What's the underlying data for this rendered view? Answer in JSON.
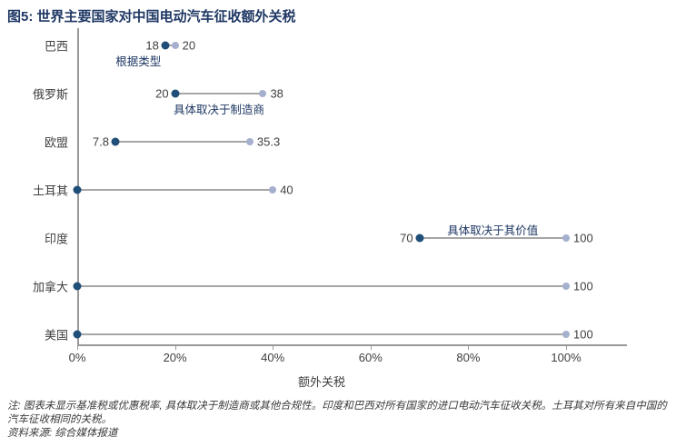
{
  "title": "图5: 世界主要国家对中国电动汽车征收额外关税",
  "chart_data": {
    "type": "dumbbell",
    "title": "图5: 世界主要国家对中国电动汽车征收额外关税",
    "xlabel": "额外关税",
    "xlim": [
      0,
      100
    ],
    "unit": "%",
    "x_ticks": [
      "0%",
      "20%",
      "40%",
      "60%",
      "80%",
      "100%"
    ],
    "grid": false,
    "legend": "none",
    "categories": [
      "巴西",
      "俄罗斯",
      "欧盟",
      "土耳其",
      "印度",
      "加拿大",
      "美国"
    ],
    "series": [
      {
        "name": "low",
        "values": [
          18,
          20,
          7.8,
          0,
          70,
          0,
          0
        ]
      },
      {
        "name": "high",
        "values": [
          20,
          38,
          35.3,
          40,
          100,
          100,
          100
        ]
      }
    ],
    "rows": [
      {
        "label": "巴西",
        "low": 18,
        "high": 20,
        "low_label": "18",
        "high_label": "20",
        "annotation": "根据类型",
        "annotation_position": "below-left"
      },
      {
        "label": "俄罗斯",
        "low": 20,
        "high": 38,
        "low_label": "20",
        "high_label": "38",
        "annotation": "具体取决于制造商",
        "annotation_position": "below"
      },
      {
        "label": "欧盟",
        "low": 7.8,
        "high": 35.3,
        "low_label": "7.8",
        "high_label": "35.3",
        "annotation": "",
        "annotation_position": ""
      },
      {
        "label": "土耳其",
        "low": 0,
        "high": 40,
        "low_label": "",
        "high_label": "40",
        "annotation": "",
        "annotation_position": ""
      },
      {
        "label": "印度",
        "low": 70,
        "high": 100,
        "low_label": "70",
        "high_label": "100",
        "annotation": "具体取决于其价值",
        "annotation_position": "above"
      },
      {
        "label": "加拿大",
        "low": 0,
        "high": 100,
        "low_label": "",
        "high_label": "100",
        "annotation": "",
        "annotation_position": ""
      },
      {
        "label": "美国",
        "low": 0,
        "high": 100,
        "low_label": "",
        "high_label": "100",
        "annotation": "",
        "annotation_position": ""
      }
    ],
    "colors": {
      "low_dot": "#1F4E79",
      "high_dot": "#A6B0CE",
      "connector": "#A6A6A6",
      "axis": "#999999",
      "title": "#1F3864",
      "annotation": "#1F3864",
      "value_text": "#404040"
    }
  },
  "footer": {
    "note": "注: 图表未显示基准税或优惠税率, 具体取决于制造商或其他合规性。印度和巴西对所有国家的进口电动汽车征收关税。土耳其对所有来自中国的汽车征收相同的关税。",
    "source": "资料来源: 综合媒体报道"
  }
}
